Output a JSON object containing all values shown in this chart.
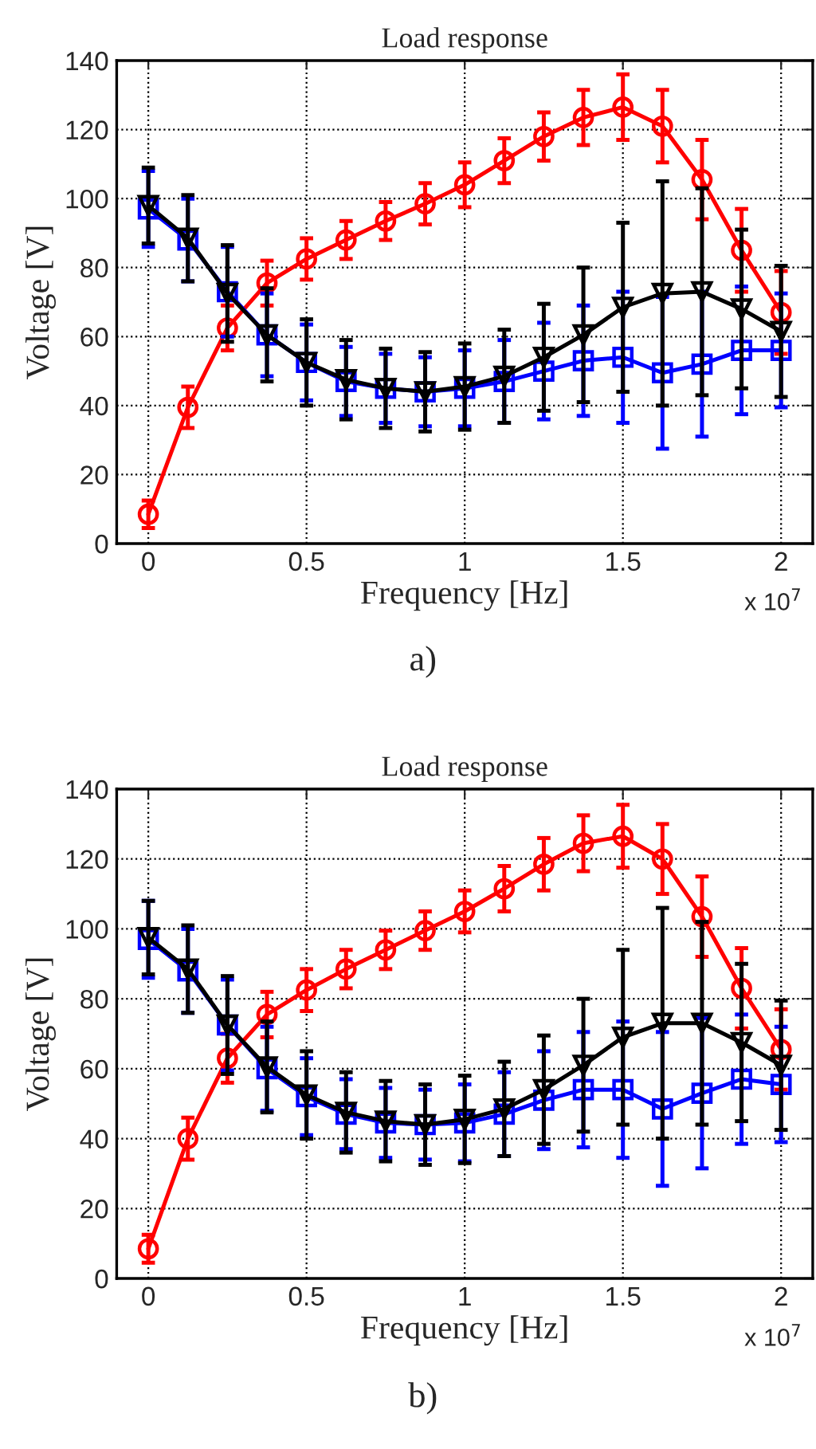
{
  "chart_data": [
    {
      "type": "line",
      "title": "Load response",
      "xlabel": "Frequency [Hz]",
      "ylabel": "Voltage [V]",
      "annotations": [
        "x 10$^{7}$",
        "a)"
      ],
      "x": [
        0,
        0.125,
        0.25,
        0.375,
        0.5,
        0.625,
        0.75,
        0.875,
        1,
        1.125,
        1.25,
        1.375,
        1.5,
        1.625,
        1.75,
        1.875,
        2
      ],
      "xlim": [
        -0.1,
        2.1
      ],
      "xticks": [
        0,
        0.5,
        1,
        1.5,
        2
      ],
      "ylim": [
        0,
        140
      ],
      "yticks": [
        0,
        20,
        40,
        60,
        80,
        100,
        120,
        140
      ],
      "grid": true,
      "line_style": "solid",
      "series": [
        {
          "color": "#ff0000",
          "marker": "circle",
          "values": [
            8.5,
            39.5,
            62.5,
            75.5,
            82.5,
            88,
            93.5,
            98.5,
            104,
            111,
            118,
            123.5,
            126.5,
            121,
            105.5,
            85,
            67
          ],
          "errors": [
            4,
            6,
            6.5,
            6.5,
            6,
            5.5,
            5.5,
            6,
            6.5,
            6.5,
            7,
            8,
            9.5,
            10.5,
            11.5,
            12,
            12
          ]
        },
        {
          "color": "#0000ff",
          "marker": "square",
          "values": [
            97,
            88,
            73,
            60.5,
            52.5,
            47,
            45,
            44,
            45,
            47,
            50,
            53,
            54,
            49.5,
            52,
            56,
            56
          ],
          "errors": [
            11,
            12,
            13,
            12,
            11,
            10,
            10,
            10,
            11,
            12,
            14,
            16,
            19,
            22,
            21,
            18.5,
            16.5
          ]
        },
        {
          "color": "#000000",
          "marker": "triangle",
          "values": [
            98,
            88.5,
            72.5,
            60.5,
            52.5,
            47.5,
            45,
            44,
            45.5,
            48.5,
            54,
            60.5,
            68.5,
            72.5,
            73,
            68,
            61.5
          ],
          "errors": [
            11,
            12.5,
            14,
            13.5,
            12.5,
            11.5,
            11.5,
            11.5,
            12.5,
            13.5,
            15.5,
            19.5,
            24.5,
            32.5,
            30,
            23,
            19
          ]
        }
      ]
    },
    {
      "type": "line",
      "title": "Load response",
      "xlabel": "Frequency [Hz]",
      "ylabel": "Voltage [V]",
      "annotations": [
        "x 10$^{7}$",
        "b)"
      ],
      "x": [
        0,
        0.125,
        0.25,
        0.375,
        0.5,
        0.625,
        0.75,
        0.875,
        1,
        1.125,
        1.25,
        1.375,
        1.5,
        1.625,
        1.75,
        1.875,
        2
      ],
      "xlim": [
        -0.1,
        2.1
      ],
      "xticks": [
        0,
        0.5,
        1,
        1.5,
        2
      ],
      "ylim": [
        0,
        140
      ],
      "yticks": [
        0,
        20,
        40,
        60,
        80,
        100,
        120,
        140
      ],
      "grid": true,
      "line_style": "solid",
      "series": [
        {
          "color": "#ff0000",
          "marker": "circle",
          "values": [
            8.5,
            40,
            63,
            75.5,
            82.5,
            88.5,
            94,
            99.5,
            105,
            111.5,
            118.5,
            124.5,
            126.5,
            120,
            103.5,
            83,
            65.5
          ],
          "errors": [
            4,
            6,
            7,
            6.5,
            6,
            5.5,
            5.5,
            5.5,
            6,
            6.5,
            7.5,
            8,
            9,
            10,
            11.5,
            11.5,
            11.5
          ]
        },
        {
          "color": "#0000ff",
          "marker": "square",
          "values": [
            97,
            88,
            72.5,
            60,
            52,
            47,
            44.5,
            44,
            44.5,
            47,
            51,
            54,
            54,
            48.5,
            53,
            57,
            55.5
          ],
          "errors": [
            11,
            12,
            13,
            12,
            11,
            10,
            10,
            10,
            11,
            12,
            14,
            16.5,
            19.5,
            22,
            21.5,
            18.5,
            16.5
          ]
        },
        {
          "color": "#000000",
          "marker": "triangle",
          "values": [
            97.5,
            88.5,
            72.5,
            60.5,
            52.5,
            47.5,
            45,
            44,
            45.5,
            48.5,
            54,
            61,
            69,
            73,
            73,
            67.5,
            61
          ],
          "errors": [
            10.5,
            12.5,
            14,
            13,
            12.5,
            11.5,
            11.5,
            11.5,
            12.5,
            13.5,
            15.5,
            19,
            25,
            33,
            29,
            22.5,
            18.5
          ]
        }
      ]
    }
  ]
}
